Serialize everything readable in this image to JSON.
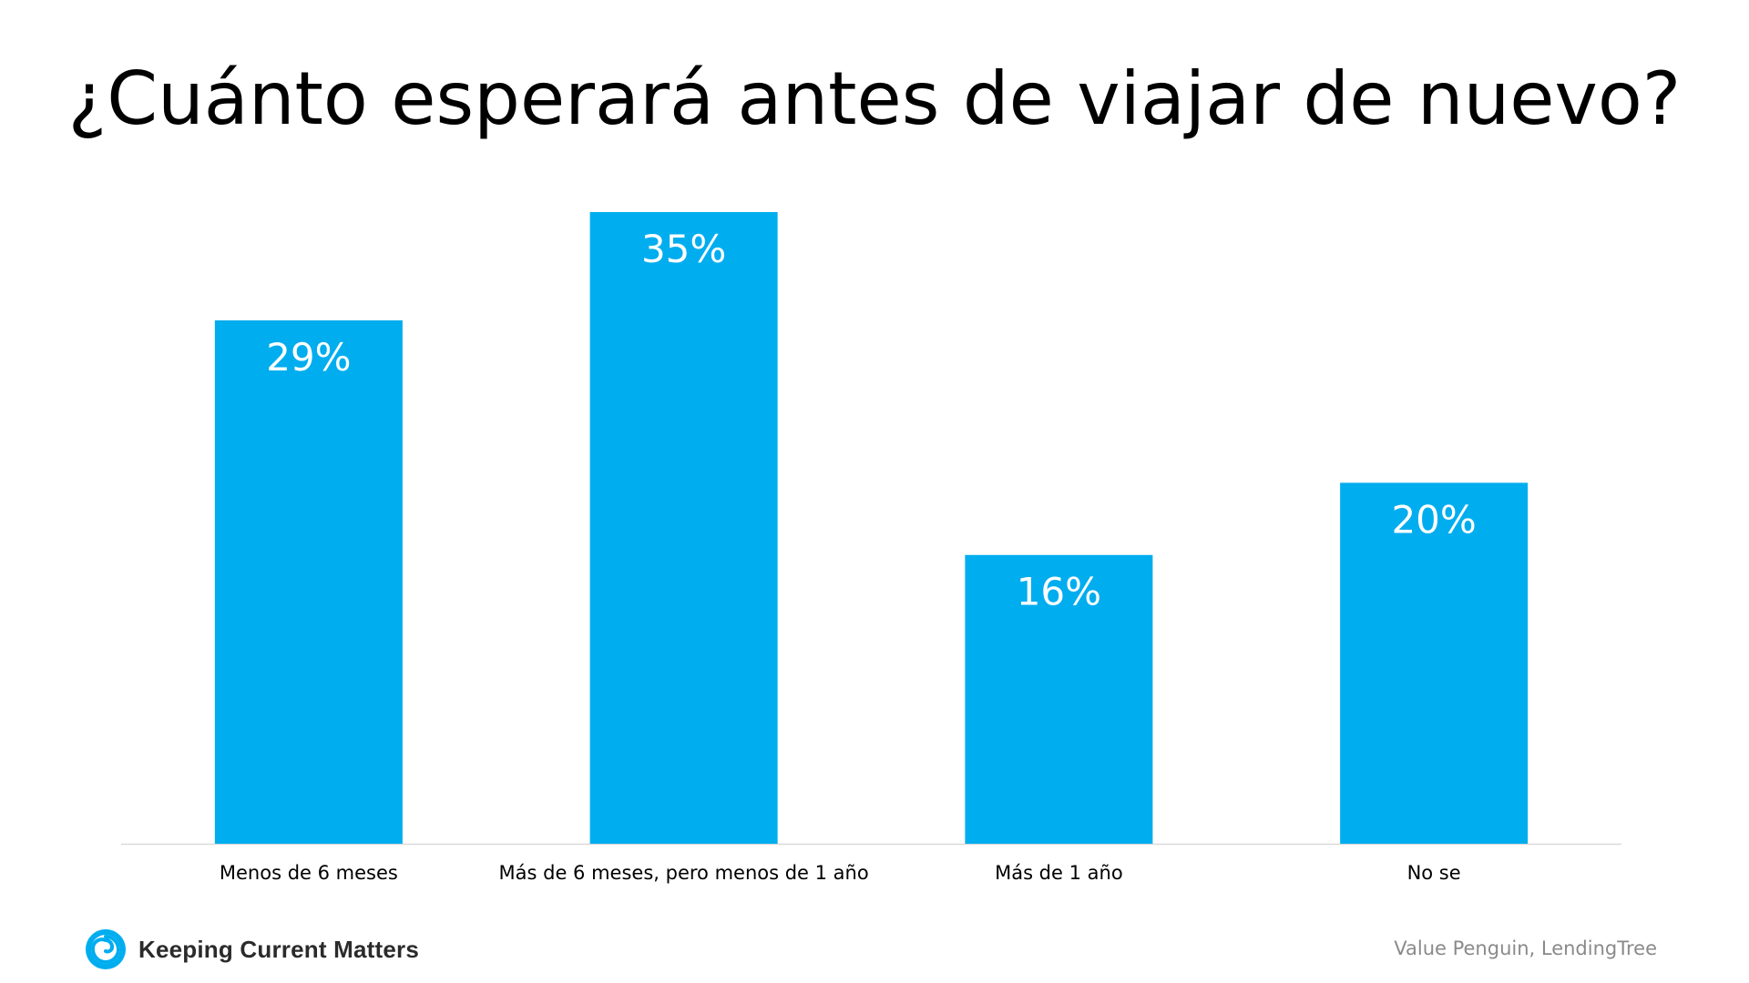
{
  "title": "¿Cuánto esperará antes de viajar de nuevo?",
  "chart_data": {
    "type": "bar",
    "categories": [
      "Menos de 6 meses",
      "Más de 6 meses, pero menos de 1 año",
      "Más de 1 año",
      "No se"
    ],
    "values": [
      29,
      35,
      16,
      20
    ],
    "value_labels": [
      "29%",
      "35%",
      "16%",
      "20%"
    ],
    "ylim": [
      0,
      35
    ],
    "bar_color": "#00adef",
    "grid": false,
    "legend": "none"
  },
  "footer": {
    "logo_text": "Keeping Current Matters",
    "logo_icon": "swirl-logo-icon",
    "source": "Value Penguin, LendingTree"
  },
  "colors": {
    "accent": "#00adef",
    "axis": "#d9d9d9"
  }
}
